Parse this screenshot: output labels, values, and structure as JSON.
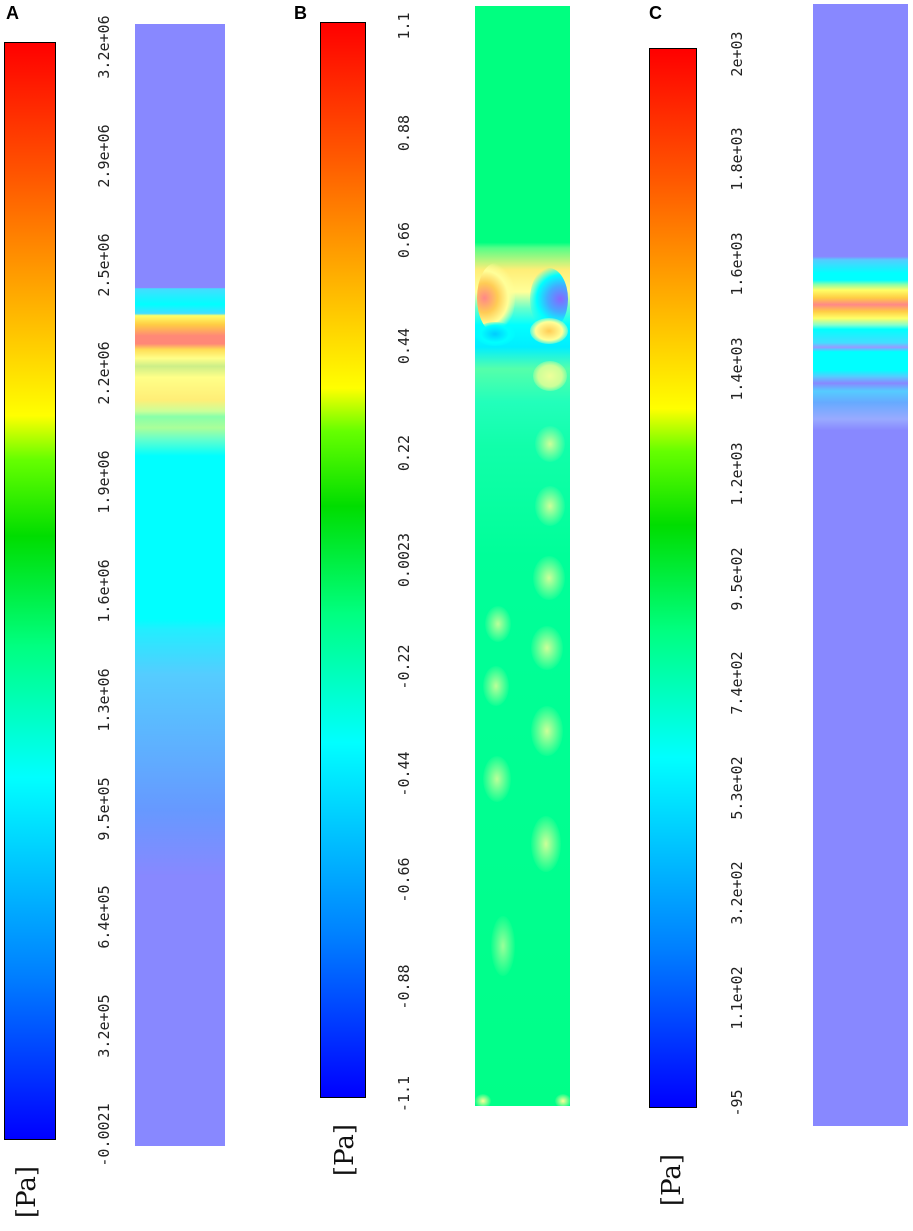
{
  "panels": [
    {
      "letter": "A",
      "unit": "[Pa]",
      "ticks": [
        "3.2e+06",
        "2.9e+06",
        "2.5e+06",
        "2.2e+06",
        "1.9e+06",
        "1.6e+06",
        "1.3e+06",
        "9.5e+05",
        "6.4e+05",
        "3.2e+05",
        "-0.0021"
      ]
    },
    {
      "letter": "B",
      "unit": "[Pa]",
      "ticks": [
        "1.1",
        "0.88",
        "0.66",
        "0.44",
        "0.22",
        "0.0023",
        "-0.22",
        "-0.44",
        "-0.66",
        "-0.88",
        "-1.1"
      ]
    },
    {
      "letter": "C",
      "unit": "[Pa]",
      "ticks": [
        "2e+03",
        "1.8e+03",
        "1.6e+03",
        "1.4e+03",
        "1.2e+03",
        "9.5e+02",
        "7.4e+02",
        "5.3e+02",
        "3.2e+02",
        "1.1e+02",
        "-95"
      ]
    }
  ],
  "colormap": [
    "#0000ff",
    "#00ffff",
    "#00ff00",
    "#ffff00",
    "#ff0000"
  ]
}
